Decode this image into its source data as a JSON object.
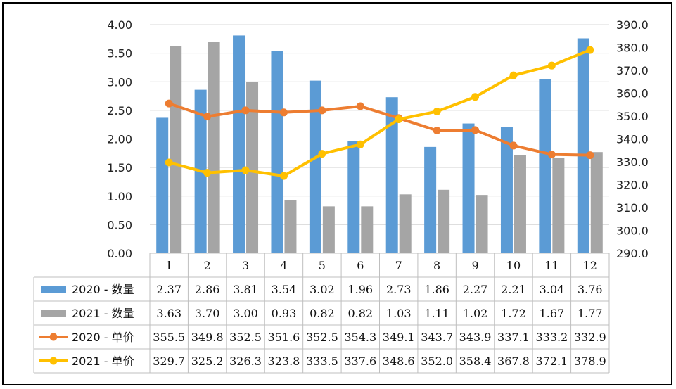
{
  "chart_data": {
    "type": "bar",
    "categories": [
      "1",
      "2",
      "3",
      "4",
      "5",
      "6",
      "7",
      "8",
      "9",
      "10",
      "11",
      "12"
    ],
    "series": [
      {
        "name": "2020 - 数量",
        "kind": "bar",
        "axis": "left",
        "color": "#5b9bd5",
        "values": [
          2.37,
          2.86,
          3.81,
          3.54,
          3.02,
          1.96,
          2.73,
          1.86,
          2.27,
          2.21,
          3.04,
          3.76
        ],
        "labels": [
          "2.37",
          "2.86",
          "3.81",
          "3.54",
          "3.02",
          "1.96",
          "2.73",
          "1.86",
          "2.27",
          "2.21",
          "3.04",
          "3.76"
        ]
      },
      {
        "name": "2021 - 数量",
        "kind": "bar",
        "axis": "left",
        "color": "#a5a5a5",
        "values": [
          3.63,
          3.7,
          3.0,
          0.93,
          0.82,
          0.82,
          1.03,
          1.11,
          1.02,
          1.72,
          1.67,
          1.77
        ],
        "labels": [
          "3.63",
          "3.70",
          "3.00",
          "0.93",
          "0.82",
          "0.82",
          "1.03",
          "1.11",
          "1.02",
          "1.72",
          "1.67",
          "1.77"
        ]
      },
      {
        "name": "2020 -  单价",
        "kind": "line",
        "axis": "right",
        "color": "#ed7d31",
        "values": [
          355.5,
          349.8,
          352.5,
          351.6,
          352.5,
          354.3,
          349.1,
          343.7,
          343.9,
          337.1,
          333.2,
          332.9
        ],
        "labels": [
          "355.5",
          "349.8",
          "352.5",
          "351.6",
          "352.5",
          "354.3",
          "349.1",
          "343.7",
          "343.9",
          "337.1",
          "333.2",
          "332.9"
        ]
      },
      {
        "name": "2021 -  单价",
        "kind": "line",
        "axis": "right",
        "color": "#ffc000",
        "values": [
          329.7,
          325.2,
          326.3,
          323.8,
          333.5,
          337.6,
          348.6,
          352.0,
          358.4,
          367.8,
          372.1,
          378.9
        ],
        "labels": [
          "329.7",
          "325.2",
          "326.3",
          "323.8",
          "333.5",
          "337.6",
          "348.6",
          "352.0",
          "358.4",
          "367.8",
          "372.1",
          "378.9"
        ]
      }
    ],
    "y_left": {
      "ylim": [
        0,
        4
      ],
      "ticks": [
        "0.00",
        "0.50",
        "1.00",
        "1.50",
        "2.00",
        "2.50",
        "3.00",
        "3.50",
        "4.00"
      ]
    },
    "y_right": {
      "ylim": [
        290,
        390
      ],
      "ticks": [
        "290.0",
        "300.0",
        "310.0",
        "320.0",
        "330.0",
        "340.0",
        "350.0",
        "360.0",
        "370.0",
        "380.0",
        "390.0"
      ]
    },
    "grid": true,
    "legend": "data-table"
  }
}
